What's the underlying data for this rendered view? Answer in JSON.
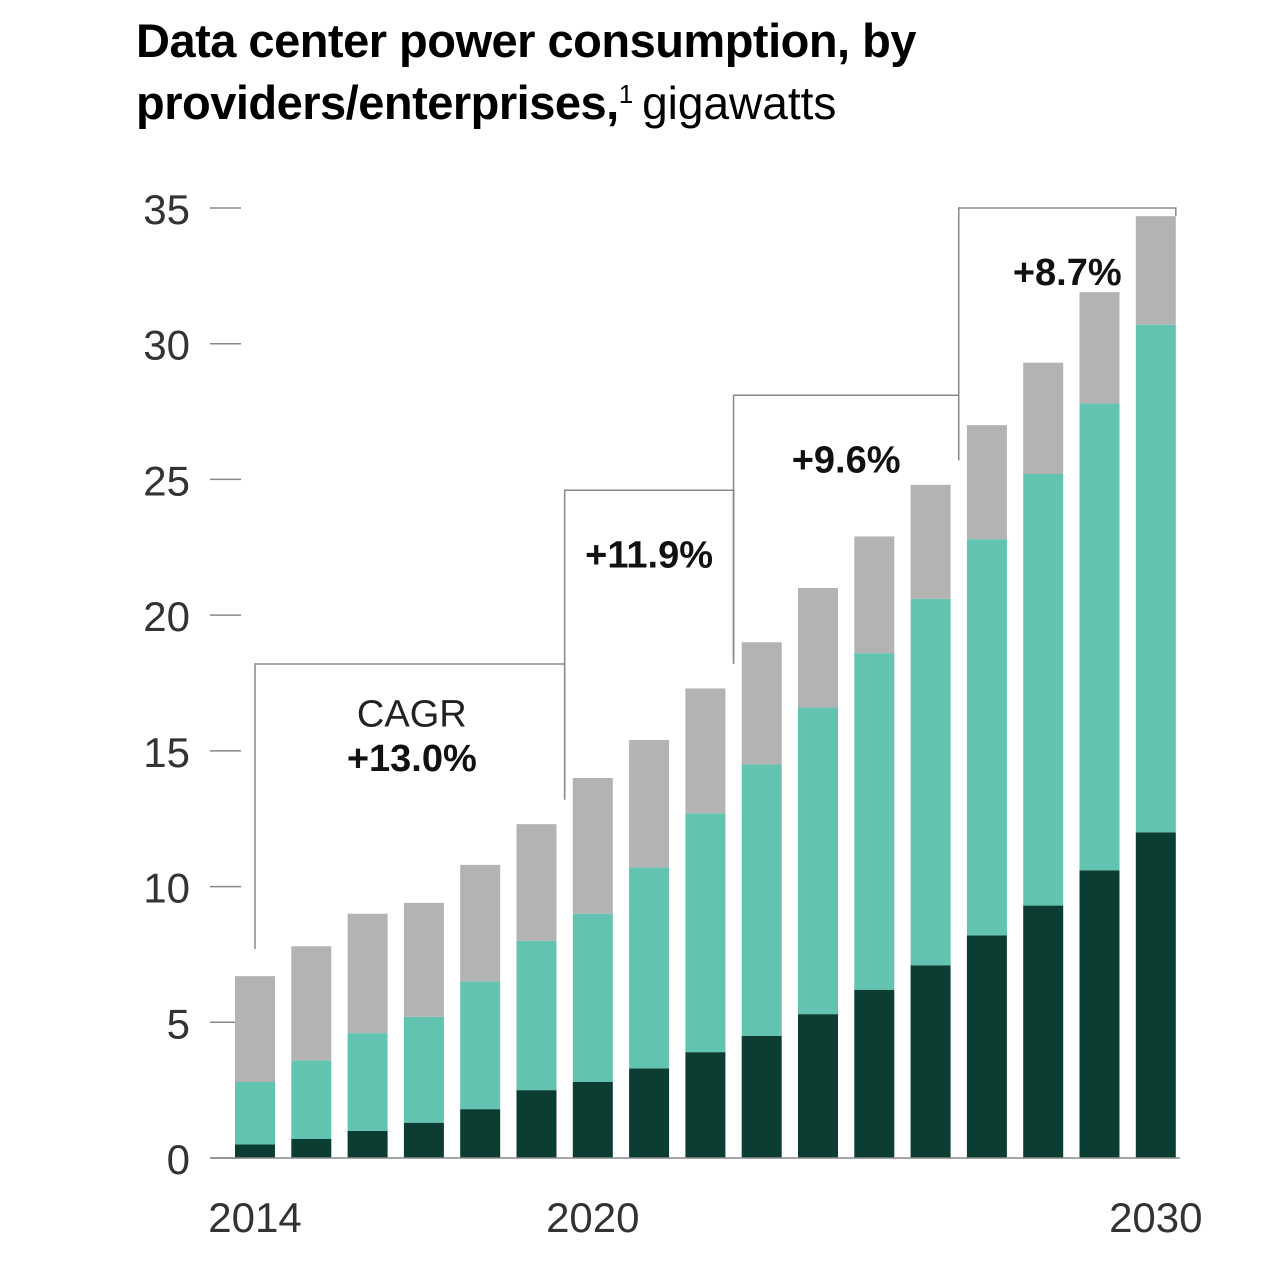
{
  "title": {
    "main": "Data center power consumption, by providers/enterprises,",
    "footnote": "1",
    "unit": "gigawatts"
  },
  "chart_data": {
    "type": "bar",
    "stacked": true,
    "years": [
      2014,
      2015,
      2016,
      2017,
      2018,
      2019,
      2020,
      2021,
      2022,
      2023,
      2024,
      2025,
      2026,
      2027,
      2028,
      2029,
      2030
    ],
    "x_tick_labels": [
      "2014",
      "2020",
      "2030"
    ],
    "series": [
      {
        "color": "#0b3d33",
        "values": [
          0.5,
          0.7,
          1.0,
          1.3,
          1.8,
          2.5,
          2.8,
          3.3,
          3.9,
          4.5,
          5.3,
          6.2,
          7.1,
          8.2,
          9.3,
          10.6,
          12.0
        ]
      },
      {
        "color": "#62c4b0",
        "values": [
          2.3,
          2.9,
          3.6,
          3.9,
          4.7,
          5.5,
          6.2,
          7.4,
          8.8,
          10.0,
          11.3,
          12.4,
          13.5,
          14.6,
          15.9,
          17.2,
          18.7
        ]
      },
      {
        "color": "#b3b3b3",
        "values": [
          3.9,
          4.2,
          4.4,
          4.2,
          4.3,
          4.3,
          5.0,
          4.7,
          4.6,
          4.5,
          4.4,
          4.3,
          4.2,
          4.2,
          4.1,
          4.1,
          4.0
        ]
      }
    ],
    "ylim": [
      0,
      35
    ],
    "yticks": [
      0,
      5,
      10,
      15,
      20,
      25,
      30,
      35
    ],
    "grid": false,
    "legend": "none",
    "cagr_brackets": [
      {
        "from_year": 2014,
        "to_year": 2019,
        "label": "CAGR",
        "value": "+13.0%"
      },
      {
        "from_year": 2019,
        "to_year": 2022,
        "value": "+11.9%"
      },
      {
        "from_year": 2022,
        "to_year": 2026,
        "value": "+9.6%"
      },
      {
        "from_year": 2026,
        "to_year": 2030,
        "value": "+8.7%"
      }
    ]
  }
}
